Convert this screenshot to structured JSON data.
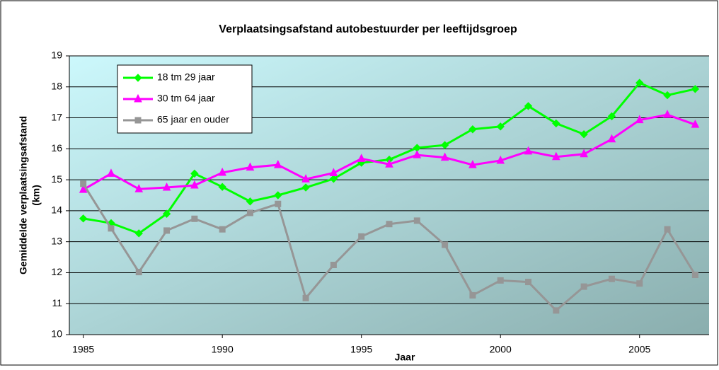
{
  "chart_data": {
    "type": "line",
    "title": "Verplaatsingsafstand autobestuurder per leeftijdsgroep",
    "xlabel": "Jaar",
    "ylabel": [
      "Gemiddelde verplaatsingsafstand",
      "(km)"
    ],
    "x": [
      1985,
      1986,
      1987,
      1988,
      1989,
      1990,
      1991,
      1992,
      1993,
      1994,
      1995,
      1996,
      1997,
      1998,
      1999,
      2000,
      2001,
      2002,
      2003,
      2004,
      2005,
      2006,
      2007
    ],
    "series": [
      {
        "name": "18 tm 29 jaar",
        "color": "#00ff00",
        "marker": "diamond",
        "values": [
          13.75,
          13.6,
          13.27,
          13.9,
          15.2,
          14.77,
          14.3,
          14.5,
          14.75,
          15.03,
          15.55,
          15.65,
          16.03,
          16.12,
          16.63,
          16.72,
          17.38,
          16.82,
          16.47,
          17.05,
          18.13,
          17.73,
          17.93
        ]
      },
      {
        "name": "30 tm 64 jaar",
        "color": "#ff00ff",
        "marker": "triangle",
        "values": [
          14.68,
          15.2,
          14.7,
          14.75,
          14.82,
          15.23,
          15.4,
          15.48,
          15.02,
          15.22,
          15.68,
          15.5,
          15.8,
          15.72,
          15.48,
          15.62,
          15.92,
          15.74,
          15.83,
          16.31,
          16.93,
          17.1,
          16.78
        ]
      },
      {
        "name": "65 jaar en ouder",
        "color": "#969696",
        "marker": "square",
        "values": [
          14.87,
          13.43,
          12.02,
          13.36,
          13.74,
          13.4,
          13.93,
          14.22,
          11.18,
          12.25,
          13.17,
          13.57,
          13.68,
          12.9,
          11.27,
          11.75,
          11.7,
          10.78,
          11.55,
          11.8,
          11.65,
          13.4,
          11.93
        ]
      }
    ],
    "xlim": [
      1984.5,
      2007.5
    ],
    "xticks": [
      1985,
      1990,
      1995,
      2000,
      2005
    ],
    "ylim": [
      10,
      19
    ],
    "yticks": [
      10,
      11,
      12,
      13,
      14,
      15,
      16,
      17,
      18,
      19
    ],
    "grid": true,
    "legend": "top-left"
  }
}
